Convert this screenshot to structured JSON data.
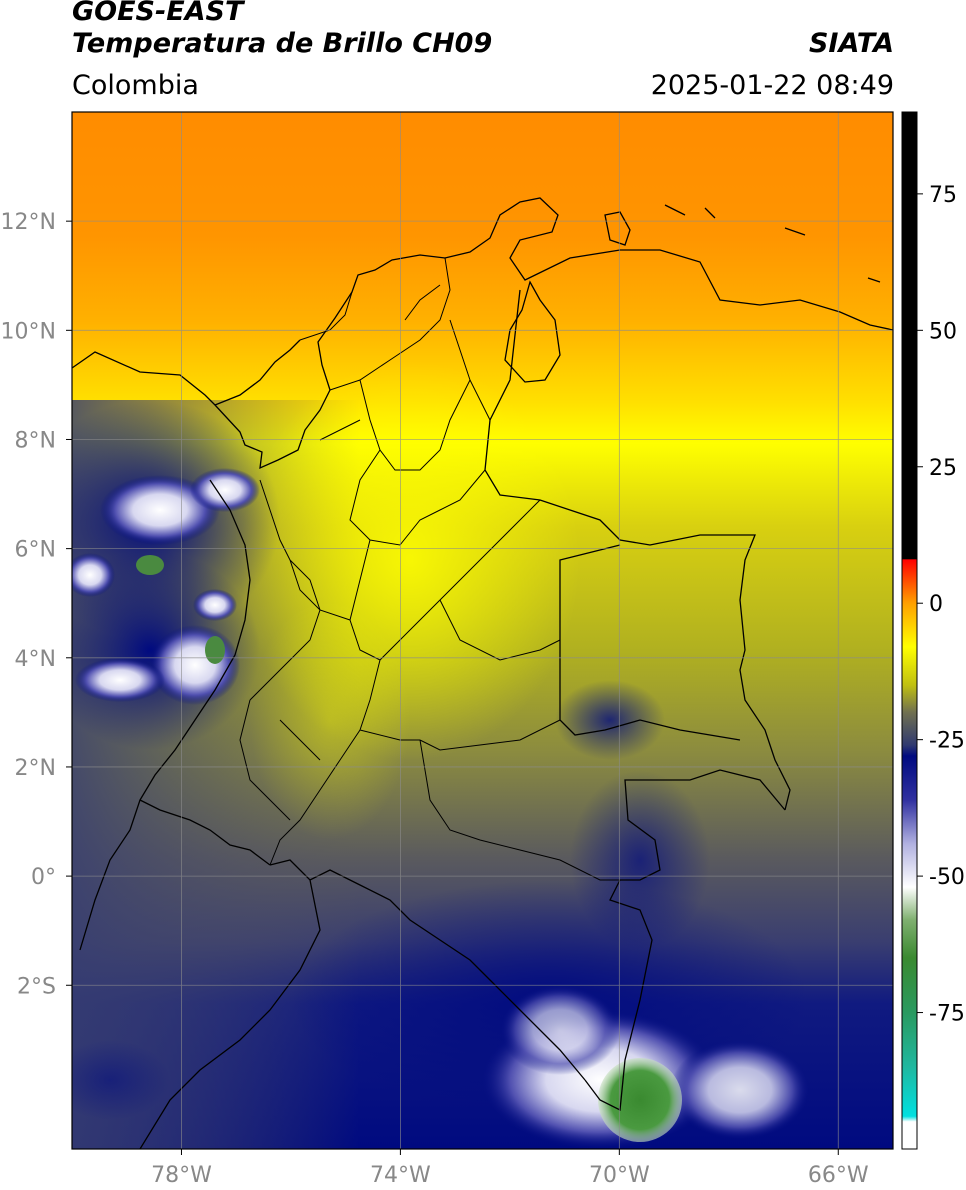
{
  "header": {
    "title_line1": "GOES-EAST",
    "title_line2": "Temperatura de Brillo CH09",
    "region": "Colombia",
    "organization": "SIATA",
    "timestamp": "2025-01-22 08:49"
  },
  "map": {
    "lon_range": [
      -80,
      -65
    ],
    "lat_range": [
      -5,
      14
    ],
    "lon_ticks": [
      {
        "value": -78,
        "label": "78°W"
      },
      {
        "value": -74,
        "label": "74°W"
      },
      {
        "value": -70,
        "label": "70°W"
      },
      {
        "value": -66,
        "label": "66°W"
      }
    ],
    "lat_ticks": [
      {
        "value": 12,
        "label": "12°N"
      },
      {
        "value": 10,
        "label": "10°N"
      },
      {
        "value": 8,
        "label": "8°N"
      },
      {
        "value": 6,
        "label": "6°N"
      },
      {
        "value": 4,
        "label": "4°N"
      },
      {
        "value": 2,
        "label": "2°N"
      },
      {
        "value": 0,
        "label": "0°"
      },
      {
        "value": -2,
        "label": "2°S"
      }
    ]
  },
  "colorbar": {
    "range": [
      -100,
      90
    ],
    "ticks": [
      {
        "value": 75,
        "label": "75"
      },
      {
        "value": 50,
        "label": "50"
      },
      {
        "value": 25,
        "label": "25"
      },
      {
        "value": 0,
        "label": "0"
      },
      {
        "value": -25,
        "label": "-25"
      },
      {
        "value": -50,
        "label": "-50"
      },
      {
        "value": -75,
        "label": "-75"
      }
    ],
    "stops": [
      {
        "v": -100,
        "c": "#ffffff"
      },
      {
        "v": -95,
        "c": "#ffffff"
      },
      {
        "v": -94,
        "c": "#00e0e0"
      },
      {
        "v": -85,
        "c": "#20b8a0"
      },
      {
        "v": -75,
        "c": "#2a9a60"
      },
      {
        "v": -65,
        "c": "#3a8a30"
      },
      {
        "v": -58,
        "c": "#80b070"
      },
      {
        "v": -52,
        "c": "#ffffff"
      },
      {
        "v": -44,
        "c": "#b0b0e0"
      },
      {
        "v": -36,
        "c": "#3030a0"
      },
      {
        "v": -28,
        "c": "#000a80"
      },
      {
        "v": -26,
        "c": "#303a70"
      },
      {
        "v": -20,
        "c": "#707050"
      },
      {
        "v": -15,
        "c": "#c0c010"
      },
      {
        "v": -8,
        "c": "#ffff00"
      },
      {
        "v": 0,
        "c": "#ffa000"
      },
      {
        "v": 8,
        "c": "#ff0000"
      },
      {
        "v": 8.1,
        "c": "#000000"
      },
      {
        "v": 90,
        "c": "#000000"
      }
    ]
  }
}
